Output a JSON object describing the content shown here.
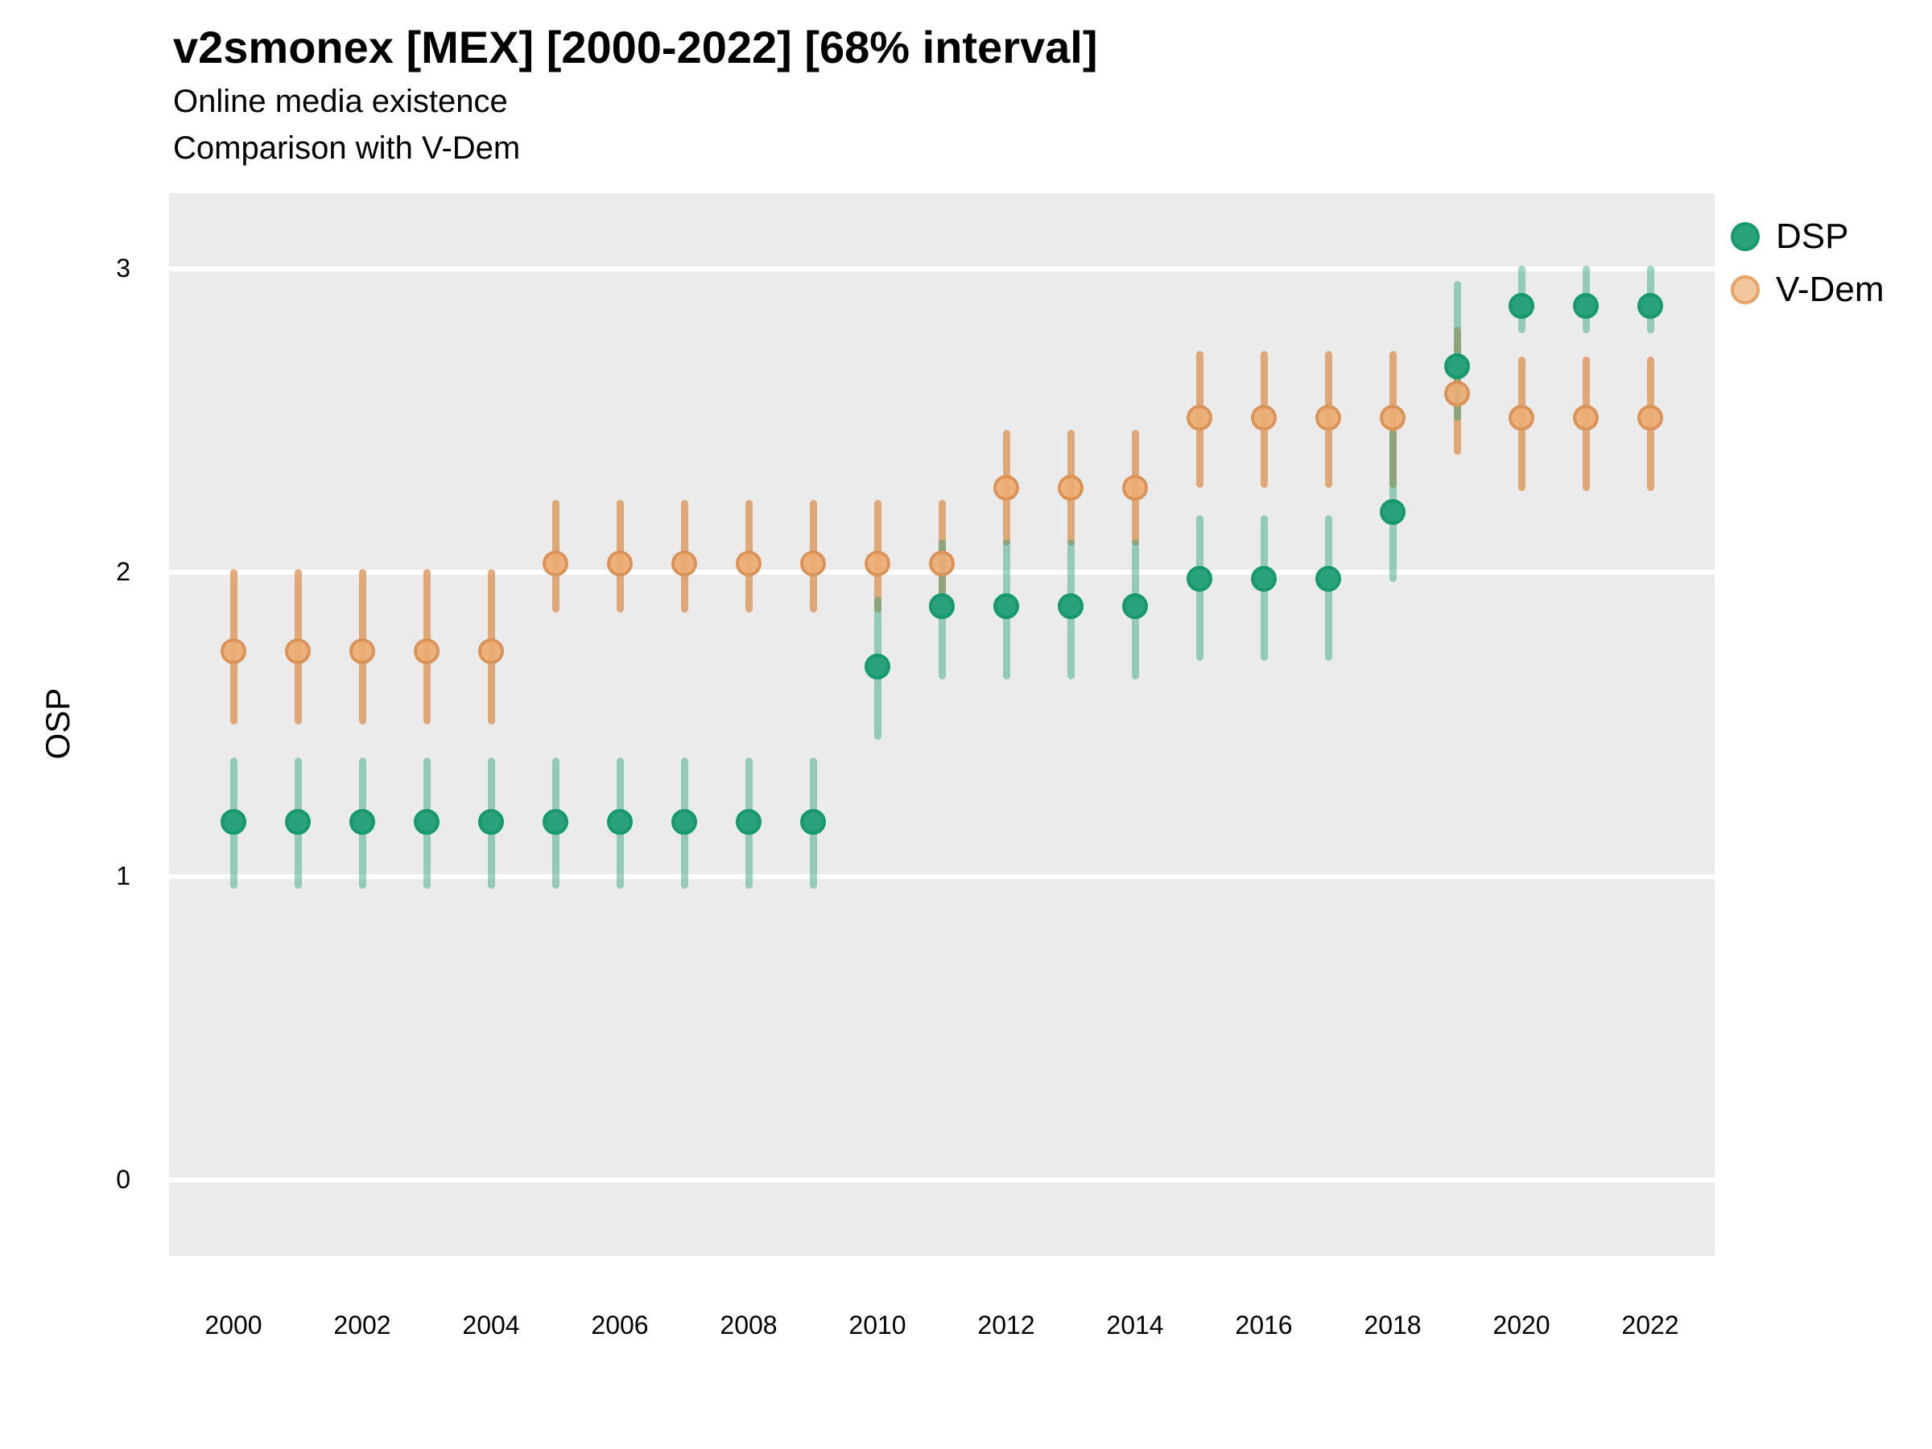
{
  "chart_data": {
    "type": "scatter",
    "title": "v2smonex [MEX] [2000-2022] [68% interval]",
    "subtitle1": "Online media existence",
    "subtitle2": "Comparison with V-Dem",
    "ylabel": "OSP",
    "interval_note": "68% interval",
    "country": "MEX",
    "xlim": [
      1999,
      2023
    ],
    "ylim": [
      -0.25,
      3.25
    ],
    "xticks": [
      2000,
      2002,
      2004,
      2006,
      2008,
      2010,
      2012,
      2014,
      2016,
      2018,
      2020,
      2022
    ],
    "yticks": [
      0,
      1,
      2,
      3
    ],
    "grid": "horizontal white lines on gray panel",
    "legend_position": "right",
    "colors": {
      "panel_bg": "#ebebeb",
      "grid": "#ffffff",
      "dsp_point": "#28a17c",
      "dsp_point_border": "#17996e",
      "dsp_bar": "rgba(39,161,124,0.45)",
      "vdem_point": "rgba(236,173,116,0.92)",
      "vdem_point_border": "#dc9358",
      "vdem_bar": "rgba(219,142,76,0.72)",
      "legend_dsp_fill": "#2aa27c",
      "legend_vdem_fill": "#f3c79e",
      "legend_vdem_border": "#e8a268"
    },
    "series": [
      {
        "name": "DSP",
        "key": "dsp",
        "points": [
          {
            "year": 2000,
            "est": 1.18,
            "lo": 0.97,
            "hi": 1.38
          },
          {
            "year": 2001,
            "est": 1.18,
            "lo": 0.97,
            "hi": 1.38
          },
          {
            "year": 2002,
            "est": 1.18,
            "lo": 0.97,
            "hi": 1.38
          },
          {
            "year": 2003,
            "est": 1.18,
            "lo": 0.97,
            "hi": 1.38
          },
          {
            "year": 2004,
            "est": 1.18,
            "lo": 0.97,
            "hi": 1.38
          },
          {
            "year": 2005,
            "est": 1.18,
            "lo": 0.97,
            "hi": 1.38
          },
          {
            "year": 2006,
            "est": 1.18,
            "lo": 0.97,
            "hi": 1.38
          },
          {
            "year": 2007,
            "est": 1.18,
            "lo": 0.97,
            "hi": 1.38
          },
          {
            "year": 2008,
            "est": 1.18,
            "lo": 0.97,
            "hi": 1.38
          },
          {
            "year": 2009,
            "est": 1.18,
            "lo": 0.97,
            "hi": 1.38
          },
          {
            "year": 2010,
            "est": 1.69,
            "lo": 1.46,
            "hi": 1.91
          },
          {
            "year": 2011,
            "est": 1.89,
            "lo": 1.66,
            "hi": 2.1
          },
          {
            "year": 2012,
            "est": 1.89,
            "lo": 1.66,
            "hi": 2.1
          },
          {
            "year": 2013,
            "est": 1.89,
            "lo": 1.66,
            "hi": 2.1
          },
          {
            "year": 2014,
            "est": 1.89,
            "lo": 1.66,
            "hi": 2.1
          },
          {
            "year": 2015,
            "est": 1.98,
            "lo": 1.72,
            "hi": 2.18
          },
          {
            "year": 2016,
            "est": 1.98,
            "lo": 1.72,
            "hi": 2.18
          },
          {
            "year": 2017,
            "est": 1.98,
            "lo": 1.72,
            "hi": 2.18
          },
          {
            "year": 2018,
            "est": 2.2,
            "lo": 1.98,
            "hi": 2.46
          },
          {
            "year": 2019,
            "est": 2.68,
            "lo": 2.51,
            "hi": 2.95
          },
          {
            "year": 2020,
            "est": 2.88,
            "lo": 2.8,
            "hi": 3.0
          },
          {
            "year": 2021,
            "est": 2.88,
            "lo": 2.8,
            "hi": 3.0
          },
          {
            "year": 2022,
            "est": 2.88,
            "lo": 2.8,
            "hi": 3.0
          }
        ]
      },
      {
        "name": "V-Dem",
        "key": "vdem",
        "points": [
          {
            "year": 2000,
            "est": 1.74,
            "lo": 1.51,
            "hi": 2.0
          },
          {
            "year": 2001,
            "est": 1.74,
            "lo": 1.51,
            "hi": 2.0
          },
          {
            "year": 2002,
            "est": 1.74,
            "lo": 1.51,
            "hi": 2.0
          },
          {
            "year": 2003,
            "est": 1.74,
            "lo": 1.51,
            "hi": 2.0
          },
          {
            "year": 2004,
            "est": 1.74,
            "lo": 1.51,
            "hi": 2.0
          },
          {
            "year": 2005,
            "est": 2.03,
            "lo": 1.88,
            "hi": 2.23
          },
          {
            "year": 2006,
            "est": 2.03,
            "lo": 1.88,
            "hi": 2.23
          },
          {
            "year": 2007,
            "est": 2.03,
            "lo": 1.88,
            "hi": 2.23
          },
          {
            "year": 2008,
            "est": 2.03,
            "lo": 1.88,
            "hi": 2.23
          },
          {
            "year": 2009,
            "est": 2.03,
            "lo": 1.88,
            "hi": 2.23
          },
          {
            "year": 2010,
            "est": 2.03,
            "lo": 1.88,
            "hi": 2.23
          },
          {
            "year": 2011,
            "est": 2.03,
            "lo": 1.88,
            "hi": 2.23
          },
          {
            "year": 2012,
            "est": 2.28,
            "lo": 2.1,
            "hi": 2.46
          },
          {
            "year": 2013,
            "est": 2.28,
            "lo": 2.1,
            "hi": 2.46
          },
          {
            "year": 2014,
            "est": 2.28,
            "lo": 2.1,
            "hi": 2.46
          },
          {
            "year": 2015,
            "est": 2.51,
            "lo": 2.29,
            "hi": 2.72
          },
          {
            "year": 2016,
            "est": 2.51,
            "lo": 2.29,
            "hi": 2.72
          },
          {
            "year": 2017,
            "est": 2.51,
            "lo": 2.29,
            "hi": 2.72
          },
          {
            "year": 2018,
            "est": 2.51,
            "lo": 2.29,
            "hi": 2.72
          },
          {
            "year": 2019,
            "est": 2.59,
            "lo": 2.4,
            "hi": 2.8
          },
          {
            "year": 2020,
            "est": 2.51,
            "lo": 2.28,
            "hi": 2.7
          },
          {
            "year": 2021,
            "est": 2.51,
            "lo": 2.28,
            "hi": 2.7
          },
          {
            "year": 2022,
            "est": 2.51,
            "lo": 2.28,
            "hi": 2.7
          }
        ]
      }
    ]
  }
}
